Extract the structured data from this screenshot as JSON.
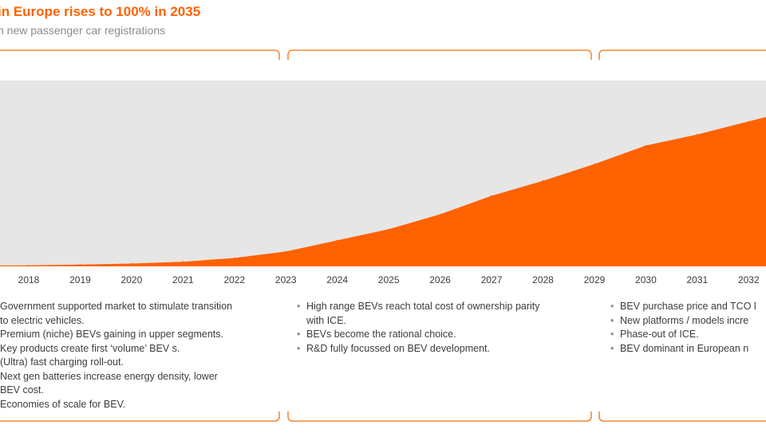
{
  "header": {
    "title": "in Europe rises to 100% in 2035",
    "subtitle": "n new passenger car registrations"
  },
  "colors": {
    "accent": "#ff6200",
    "background_band": "#e6e6e6",
    "bracket": "#f08a3c"
  },
  "chart_data": {
    "type": "area",
    "title": "in Europe rises to 100% in 2035",
    "subtitle": "n new passenger car registrations",
    "xlabel": "",
    "ylabel": "",
    "x": [
      "2018",
      "2019",
      "2020",
      "2021",
      "2022",
      "2023",
      "2024",
      "2025",
      "2026",
      "2027",
      "2028",
      "2029",
      "2030",
      "2031",
      "2032"
    ],
    "ylim": [
      0,
      100
    ],
    "series": [
      {
        "values": [
          0.5,
          1,
          1.5,
          2.5,
          4.5,
          8,
          14,
          20,
          28,
          38,
          46,
          55,
          65,
          71,
          78
        ]
      }
    ],
    "grid": false,
    "legend": "none"
  },
  "phases": [
    {
      "items": [
        {
          "text": "Government supported market to stimulate transition"
        },
        {
          "text": "to electric vehicles."
        },
        {
          "text": "Premium (niche) BEVs gaining in upper segments."
        },
        {
          "text": "Key products create first ‘volume’ BEV s."
        },
        {
          "text": "(Ultra) fast charging roll-out."
        },
        {
          "text": "Next gen batteries increase energy density, lower"
        },
        {
          "text": "BEV cost."
        },
        {
          "text": "Economies of scale for BEV."
        }
      ]
    },
    {
      "items": [
        {
          "text": "High range BEVs reach total cost of ownership parity",
          "bullet": "•"
        },
        {
          "text": "with ICE.",
          "bullet": ""
        },
        {
          "text": "BEVs become the rational choice.",
          "bullet": "•"
        },
        {
          "text": "R&D fully focussed on BEV development.",
          "bullet": "•"
        }
      ]
    },
    {
      "items": [
        {
          "text": "BEV purchase price and TCO l",
          "bullet": "•"
        },
        {
          "text": "New platforms / models incre",
          "bullet": "•"
        },
        {
          "text": "Phase-out of ICE.",
          "bullet": "•"
        },
        {
          "text": "BEV dominant in European n",
          "bullet": "•"
        }
      ]
    }
  ]
}
